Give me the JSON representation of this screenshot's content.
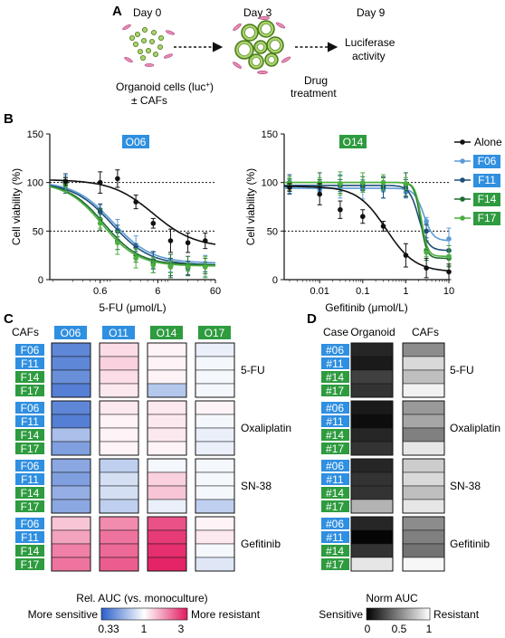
{
  "panel_a": {
    "letter": "A",
    "day0": "Day 0",
    "day3": "Day 3",
    "day9": "Day 9",
    "caption1_line1": "Organoid cells (luc",
    "caption1_sup": "+",
    "caption1_line1_end": ")",
    "caption1_line2": "± CAFs",
    "caption2_line1": "Drug",
    "caption2_line2": "treatment",
    "caption3_line1": "Luciferase",
    "caption3_line2": "activity"
  },
  "panel_b": {
    "letter": "B",
    "colors": {
      "Alone": "#111111",
      "F06": "#5b9bd5",
      "F11": "#1f4e79",
      "F14": "#1e6b2f",
      "F17": "#4caf3f"
    },
    "legend": [
      "Alone",
      "F06",
      "F11",
      "F14",
      "F17"
    ]
  },
  "chart_data": [
    {
      "type": "line",
      "title": "O06",
      "title_color": "#2f8fe0",
      "xlabel": "5-FU  (μmol/L)",
      "ylabel": "Cell viability (%)",
      "x_scale": "log",
      "x_ticks": [
        0.6,
        6,
        60
      ],
      "x_tick_labels": [
        "0.6",
        "6",
        "60"
      ],
      "xlim": [
        0.08,
        60
      ],
      "ylim": [
        0,
        150
      ],
      "y_ticks": [
        0,
        50,
        100,
        150
      ],
      "reference_lines": [
        50,
        100
      ],
      "series": [
        {
          "name": "Alone",
          "x": [
            0.15,
            0.6,
            1.2,
            2.5,
            5,
            10,
            20,
            40
          ],
          "y": [
            101,
            100,
            104,
            80,
            58,
            40,
            38,
            40
          ],
          "ec50": 5.0,
          "top": 103,
          "bottom": 33,
          "hill": 1.2
        },
        {
          "name": "F06",
          "x": [
            0.15,
            0.6,
            1.2,
            2.5,
            5,
            10,
            20,
            40
          ],
          "y": [
            100,
            72,
            50,
            35,
            20,
            14,
            13,
            14
          ],
          "ec50": 1.0,
          "top": 101,
          "bottom": 17,
          "hill": 1.3
        },
        {
          "name": "F11",
          "x": [
            0.15,
            0.6,
            1.2,
            2.5,
            5,
            10,
            20,
            40
          ],
          "y": [
            99,
            70,
            50,
            33,
            18,
            13,
            12,
            13
          ],
          "ec50": 0.95,
          "top": 100,
          "bottom": 15,
          "hill": 1.3
        },
        {
          "name": "F14",
          "x": [
            0.15,
            0.6,
            1.2,
            2.5,
            5,
            10,
            20,
            40
          ],
          "y": [
            99,
            62,
            40,
            25,
            16,
            14,
            14,
            14
          ],
          "ec50": 0.7,
          "top": 100,
          "bottom": 15,
          "hill": 1.4
        },
        {
          "name": "F17",
          "x": [
            0.15,
            0.6,
            1.2,
            2.5,
            5,
            10,
            20,
            40
          ],
          "y": [
            98,
            58,
            38,
            22,
            15,
            13,
            13,
            13
          ],
          "ec50": 0.65,
          "top": 100,
          "bottom": 14,
          "hill": 1.4
        }
      ]
    },
    {
      "type": "line",
      "title": "O14",
      "title_color": "#2e9b3f",
      "xlabel": "Gefitinib (μmol/L)",
      "ylabel": "Cell viability (%)",
      "x_scale": "log",
      "x_ticks": [
        0.01,
        0.1,
        1,
        10
      ],
      "x_tick_labels": [
        "0.01",
        "0.1",
        "1",
        "10"
      ],
      "xlim": [
        0.0015,
        10
      ],
      "ylim": [
        0,
        150
      ],
      "y_ticks": [
        0,
        50,
        100,
        150
      ],
      "reference_lines": [
        50,
        100
      ],
      "series": [
        {
          "name": "Alone",
          "x": [
            0.002,
            0.01,
            0.03,
            0.1,
            0.3,
            1,
            3,
            10
          ],
          "y": [
            95,
            88,
            72,
            65,
            55,
            25,
            12,
            8
          ],
          "ec50": 0.35,
          "top": 96,
          "bottom": 8,
          "hill": 1.3
        },
        {
          "name": "F06",
          "x": [
            0.002,
            0.01,
            0.03,
            0.1,
            0.3,
            1,
            3,
            10
          ],
          "y": [
            96,
            92,
            96,
            93,
            92,
            90,
            60,
            42
          ],
          "ec50": 2.6,
          "top": 94,
          "bottom": 40,
          "hill": 4
        },
        {
          "name": "F11",
          "x": [
            0.002,
            0.01,
            0.03,
            0.1,
            0.3,
            1,
            3,
            10
          ],
          "y": [
            98,
            95,
            97,
            96,
            95,
            94,
            50,
            30
          ],
          "ec50": 2.0,
          "top": 97,
          "bottom": 30,
          "hill": 4
        },
        {
          "name": "F14",
          "x": [
            0.002,
            0.01,
            0.03,
            0.1,
            0.3,
            1,
            3,
            10
          ],
          "y": [
            100,
            99,
            98,
            99,
            100,
            98,
            30,
            22
          ],
          "ec50": 2.2,
          "top": 100,
          "bottom": 22,
          "hill": 6
        },
        {
          "name": "F17",
          "x": [
            0.002,
            0.01,
            0.03,
            0.1,
            0.3,
            1,
            3,
            10
          ],
          "y": [
            99,
            100,
            99,
            100,
            100,
            99,
            28,
            24
          ],
          "ec50": 2.3,
          "top": 100,
          "bottom": 24,
          "hill": 6
        }
      ]
    },
    {
      "type": "heatmap",
      "panel": "C",
      "row_header": "CAFs",
      "columns": [
        "O06",
        "O11",
        "O14",
        "O17"
      ],
      "column_colors": [
        "#2f8fe0",
        "#2f8fe0",
        "#2e9b3f",
        "#2e9b3f"
      ],
      "rows": [
        "F06",
        "F11",
        "F14",
        "F17"
      ],
      "row_colors": [
        "#2f8fe0",
        "#2f8fe0",
        "#2e9b3f",
        "#2e9b3f"
      ],
      "drugs": [
        "5-FU",
        "Oxaliplatin",
        "SN-38",
        "Gefitinib"
      ],
      "scale_label": "Rel. AUC (vs. monoculture)",
      "scale_low_label": "More sensitive",
      "scale_high_label": "More resistant",
      "scale_ticks": [
        "0.33",
        "1",
        "3"
      ],
      "values_log3": [
        [
          [
            -0.75,
            0.15,
            0.05,
            -0.1
          ],
          [
            -0.75,
            0.2,
            0.05,
            -0.05
          ],
          [
            -0.7,
            0.15,
            0.05,
            -0.05
          ],
          [
            -0.8,
            0.1,
            -0.35,
            -0.05
          ]
        ],
        [
          [
            -0.75,
            0.1,
            0.1,
            0.05
          ],
          [
            -0.8,
            0.05,
            0.1,
            -0.05
          ],
          [
            -0.4,
            0.05,
            0.1,
            -0.1
          ],
          [
            -0.6,
            0.05,
            0.05,
            -0.1
          ]
        ],
        [
          [
            -0.55,
            -0.3,
            -0.05,
            -0.05
          ],
          [
            -0.6,
            -0.2,
            0.2,
            -0.05
          ],
          [
            -0.5,
            -0.2,
            0.25,
            -0.05
          ],
          [
            -0.55,
            -0.3,
            -0.1,
            -0.3
          ]
        ],
        [
          [
            0.25,
            0.5,
            0.75,
            0.05
          ],
          [
            0.4,
            0.6,
            0.85,
            0.1
          ],
          [
            0.55,
            0.65,
            0.9,
            -0.05
          ],
          [
            0.6,
            0.7,
            0.95,
            -0.15
          ]
        ]
      ]
    },
    {
      "type": "heatmap",
      "panel": "D",
      "row_header": "Case",
      "columns": [
        "Organoid",
        "CAFs"
      ],
      "rows": [
        "#06",
        "#11",
        "#14",
        "#17"
      ],
      "row_colors": [
        "#2f8fe0",
        "#2f8fe0",
        "#2e9b3f",
        "#2e9b3f"
      ],
      "drugs": [
        "5-FU",
        "Oxaliplatin",
        "SN-38",
        "Gefitinib"
      ],
      "scale_label": "Norm AUC",
      "scale_low_label": "Sensitive",
      "scale_high_label": "Resistant",
      "scale_ticks": [
        "0",
        "0.5",
        "1"
      ],
      "values": [
        [
          [
            0.15,
            0.55
          ],
          [
            0.1,
            0.85
          ],
          [
            0.25,
            0.75
          ],
          [
            0.2,
            0.95
          ]
        ],
        [
          [
            0.1,
            0.6
          ],
          [
            0.05,
            0.65
          ],
          [
            0.15,
            0.5
          ],
          [
            0.2,
            0.9
          ]
        ],
        [
          [
            0.15,
            0.8
          ],
          [
            0.2,
            0.85
          ],
          [
            0.2,
            0.75
          ],
          [
            0.7,
            0.9
          ]
        ],
        [
          [
            0.15,
            0.55
          ],
          [
            0.02,
            0.5
          ],
          [
            0.2,
            0.45
          ],
          [
            0.9,
            0.97
          ]
        ]
      ]
    }
  ]
}
